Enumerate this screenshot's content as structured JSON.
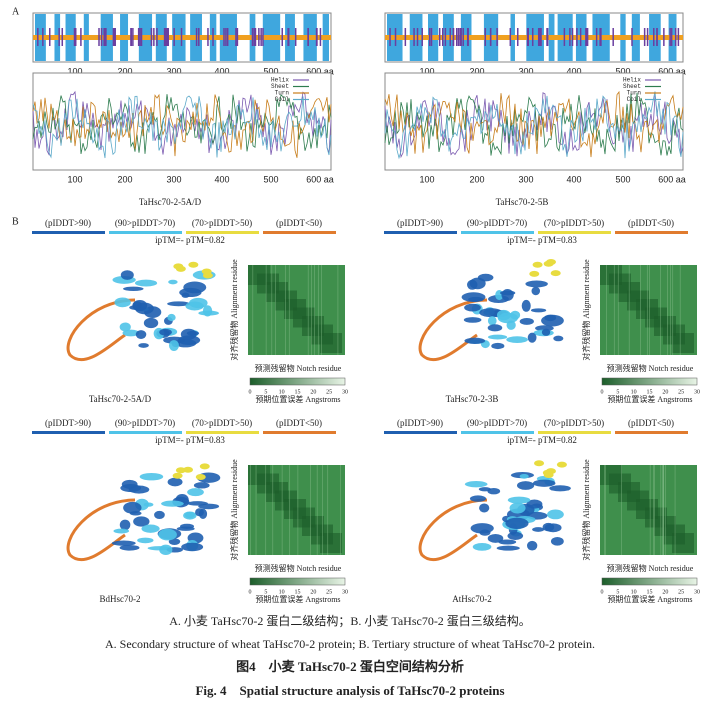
{
  "panel_a": {
    "label": "A",
    "plots": [
      {
        "caption": "TaHsc70-2-5A/D",
        "x_ticks": [
          "100",
          "200",
          "300",
          "400",
          "500",
          "600 aa"
        ],
        "legend": [
          "Helix",
          "Sheet",
          "Turn",
          "Coil"
        ]
      },
      {
        "caption": "TaHsc70-2-5B",
        "x_ticks": [
          "100",
          "200",
          "300",
          "400",
          "500",
          "600 aa"
        ],
        "legend": [
          "Helix",
          "Sheet",
          "Turn",
          "Coil"
        ]
      }
    ]
  },
  "panel_b": {
    "label": "B",
    "models": [
      {
        "legend": [
          "(pIDDT>90)",
          "(90>pIDDT>70)",
          "(70>pIDDT>50)",
          "(pIDDT<50)"
        ],
        "score": "ipTM=- pTM=0.82",
        "caption": "TaHsc70-2-5A/D",
        "y_axis": "对齐残留物 Alignment residue",
        "x_axis": "预测残留物 Notch residue",
        "colorbar_label": "预期位置误差 Angstroms",
        "colorbar_ticks": [
          "0",
          "5",
          "10",
          "15",
          "20",
          "25",
          "30"
        ]
      },
      {
        "legend": [
          "(pIDDT>90)",
          "(90>pIDDT>70)",
          "(70>pIDDT>50)",
          "(pIDDT<50)"
        ],
        "score": "ipTM=- pTM=0.83",
        "caption": "TaHsc70-2-3B",
        "y_axis": "对齐残留物 Alignment residue",
        "x_axis": "预测残留物 Notch residue",
        "colorbar_label": "预期位置误差 Angstroms",
        "colorbar_ticks": [
          "0",
          "5",
          "10",
          "15",
          "20",
          "25",
          "30"
        ]
      },
      {
        "legend": [
          "(pIDDT>90)",
          "(90>pIDDT>70)",
          "(70>pIDDT>50)",
          "(pIDDT<50)"
        ],
        "score": "ipTM=- pTM=0.83",
        "caption": "BdHsc70-2",
        "y_axis": "对齐残留物 Alignment residue",
        "x_axis": "预测残留物 Notch residue",
        "colorbar_label": "预期位置误差 Angstroms",
        "colorbar_ticks": [
          "0",
          "5",
          "10",
          "15",
          "20",
          "25",
          "30"
        ]
      },
      {
        "legend": [
          "(pIDDT>90)",
          "(90>pIDDT>70)",
          "(70>pIDDT>50)",
          "(pIDDT<50)"
        ],
        "score": "ipTM=- pTM=0.82",
        "caption": "AtHsc70-2",
        "y_axis": "对齐残留物 Alignment residue",
        "x_axis": "预测残留物 Notch residue",
        "colorbar_label": "预期位置误差 Angstroms",
        "colorbar_ticks": [
          "0",
          "5",
          "10",
          "15",
          "20",
          "25",
          "30"
        ]
      }
    ]
  },
  "caption": {
    "zh_sub": "A. 小麦 TaHsc70-2 蛋白二级结构；B. 小麦 TaHsc70-2 蛋白三级结构。",
    "en_sub": "A. Secondary structure of wheat TaHsc70-2 protein; B. Tertiary structure of wheat TaHsc70-2 protein.",
    "zh_title": "图4　小麦 TaHsc70-2 蛋白空间结构分析",
    "en_title": "Fig. 4　Spatial structure analysis of TaHsc70-2 proteins"
  }
}
